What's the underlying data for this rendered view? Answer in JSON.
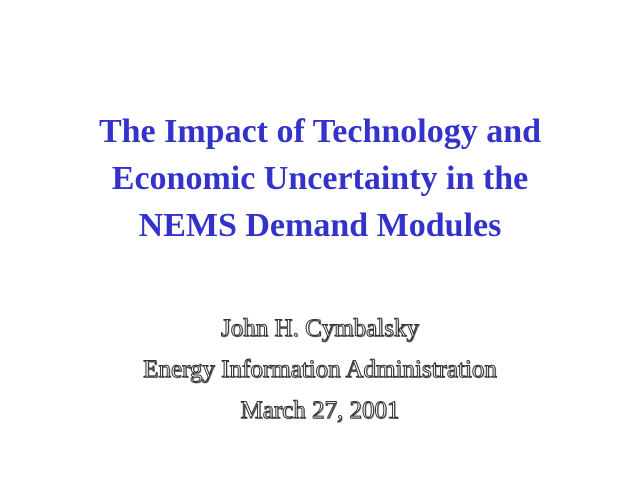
{
  "slide": {
    "title_lines": [
      "The Impact of Technology and",
      "Economic Uncertainty in the",
      "NEMS Demand Modules"
    ],
    "author": "John H. Cymbalsky",
    "organization": "Energy Information Administration",
    "date": "March 27, 2001"
  },
  "colors": {
    "title": "#3333cc",
    "background": "#ffffff",
    "subtitle_outline": "#333333"
  }
}
